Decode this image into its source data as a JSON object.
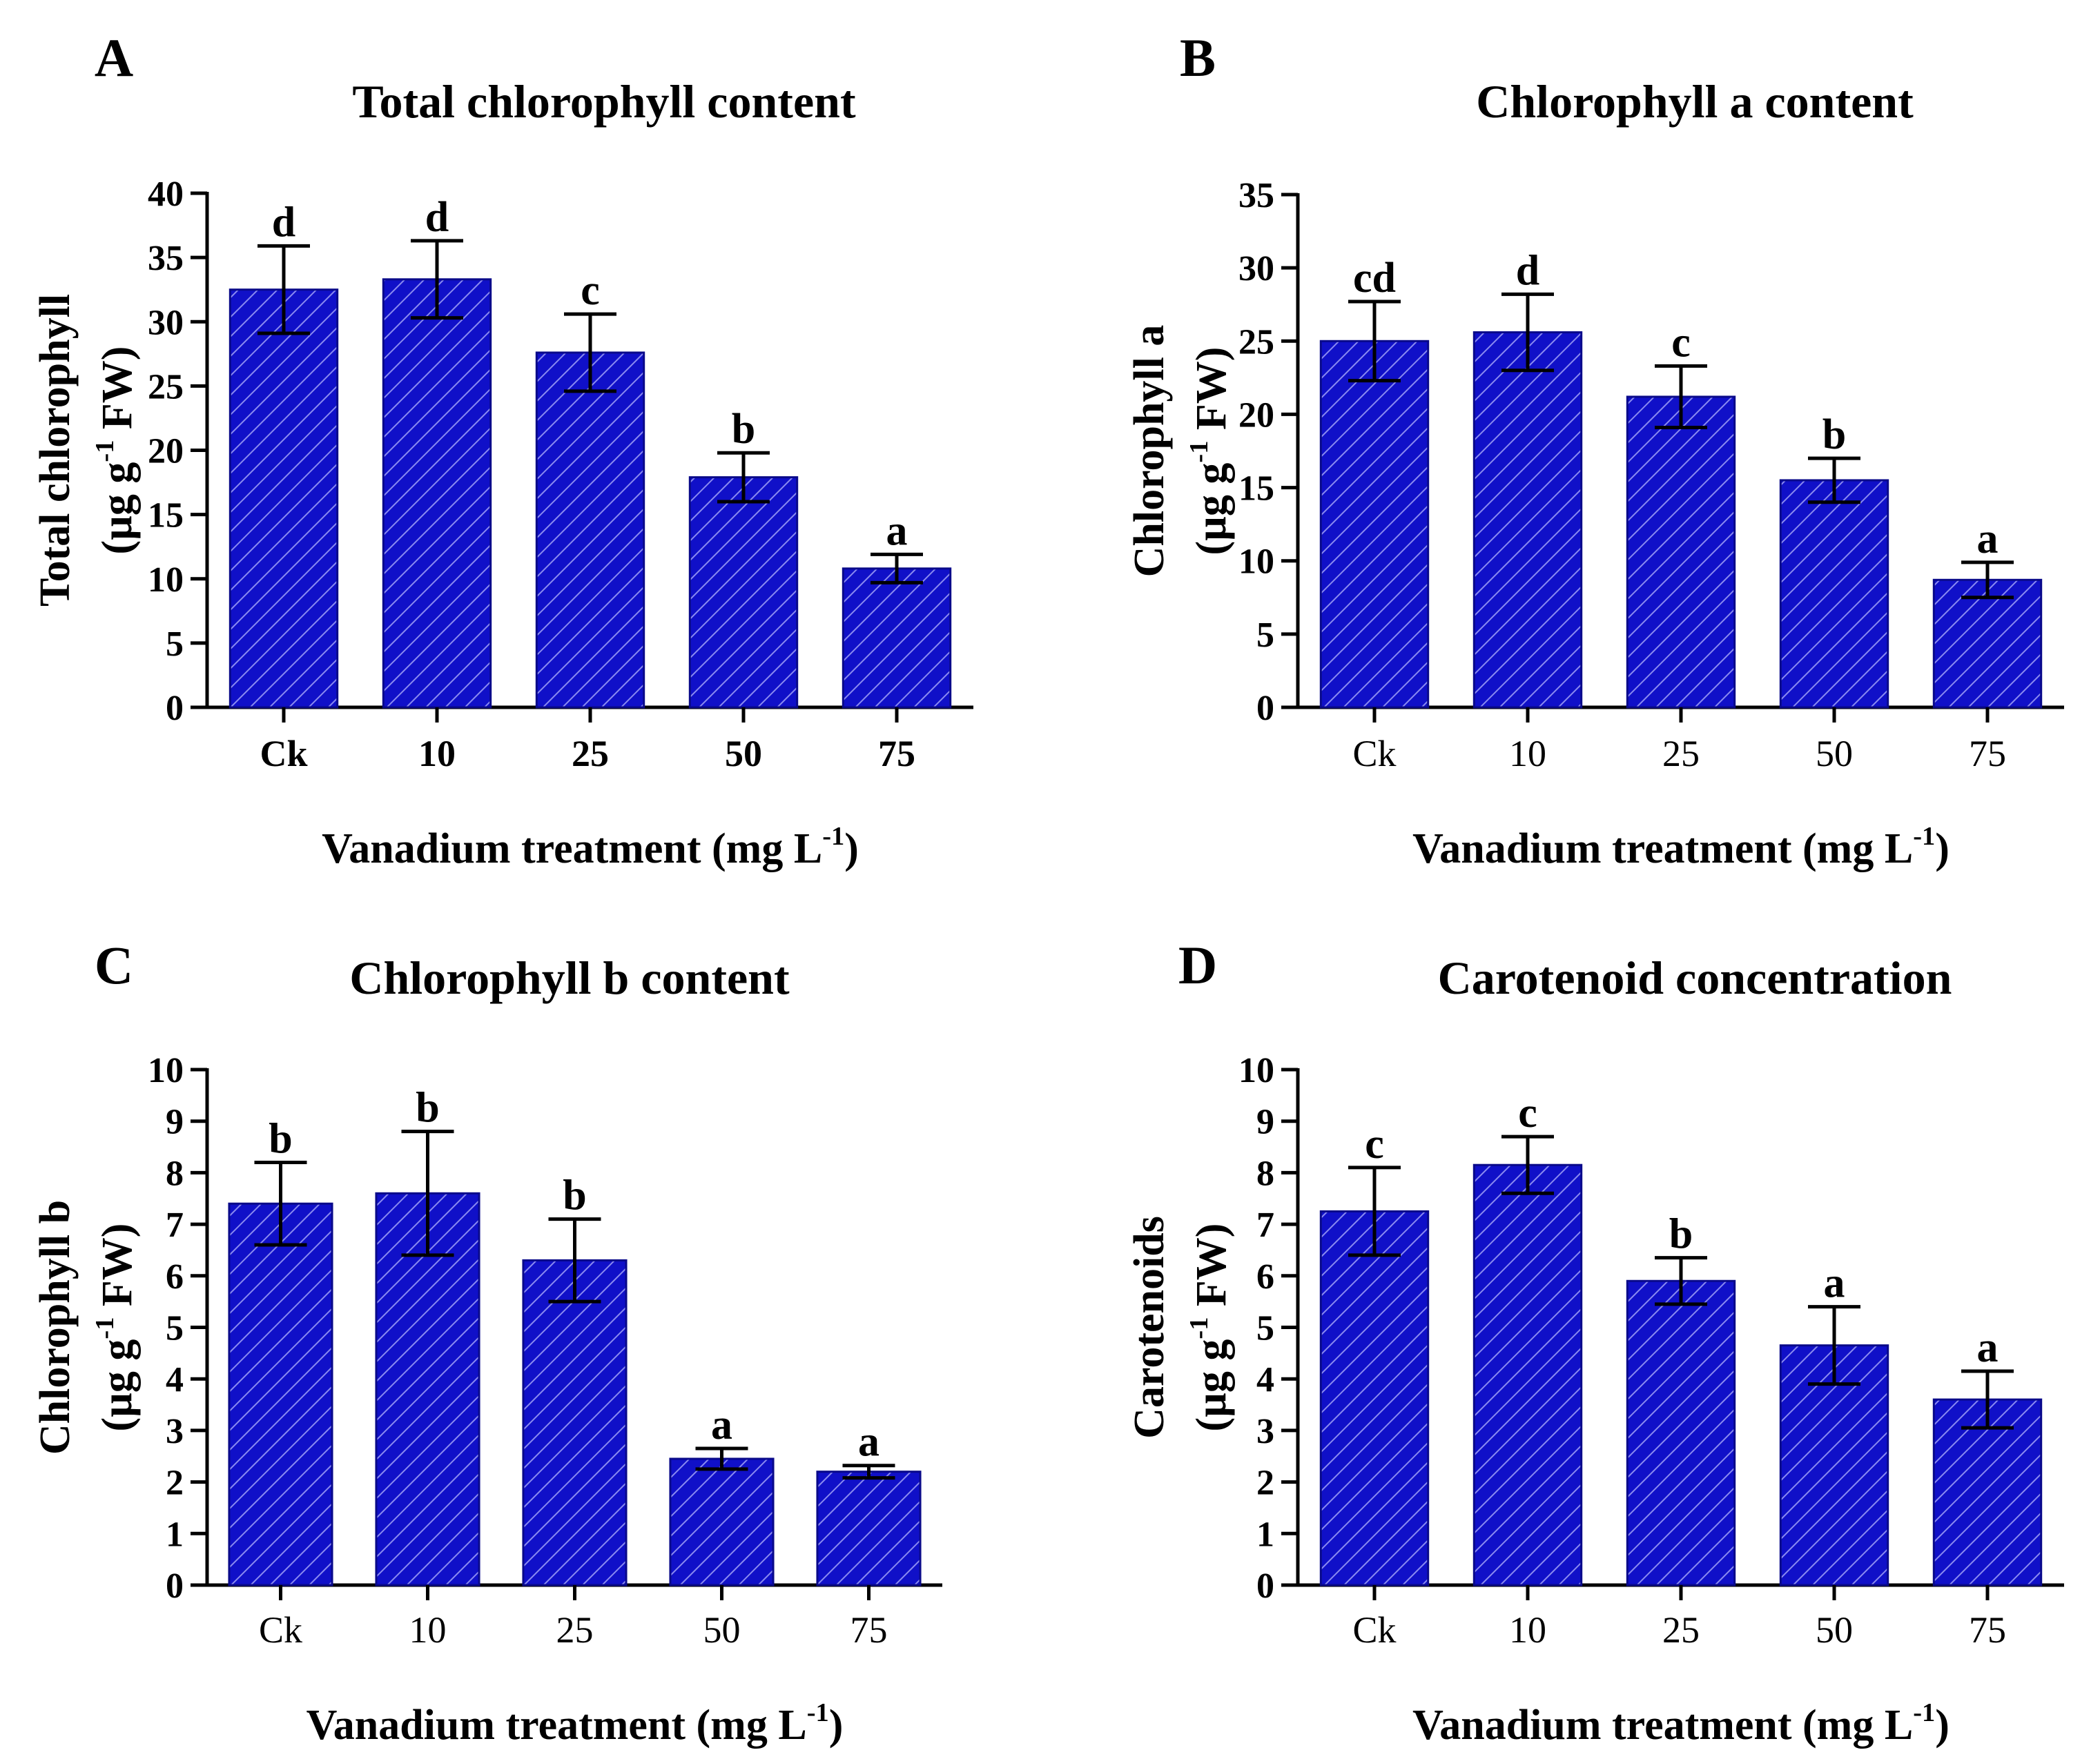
{
  "figure": {
    "bar_color": "#1010c8",
    "bar_stroke": "#0a0a8a",
    "hatch_color": "#8a8af0",
    "axis_color": "#000000"
  },
  "chart_data": [
    {
      "type": "bar",
      "panel_label": "A",
      "title": "Total chlorophyll content",
      "ylabel_line1": "Total chlorophyll",
      "ylabel_line2": {
        "pre": "(µg g",
        "sup": "-1",
        "post": " FW)"
      },
      "xlabel": {
        "pre": "Vanadium treatment (mg L",
        "sup": "-1",
        "post": ")"
      },
      "categories": [
        "Ck",
        "10",
        "25",
        "50",
        "75"
      ],
      "tick_bold": true,
      "values": [
        32.5,
        33.3,
        27.6,
        17.9,
        10.8
      ],
      "errors": [
        3.4,
        3.0,
        3.0,
        1.9,
        1.1
      ],
      "letters": [
        "d",
        "d",
        "c",
        "b",
        "a"
      ],
      "ylim": [
        0,
        40
      ],
      "yticks": [
        0,
        5,
        10,
        15,
        20,
        25,
        30,
        35,
        40
      ]
    },
    {
      "type": "bar",
      "panel_label": "B",
      "title": "Chlorophyll a content",
      "ylabel_line1": "Chlorophyll a",
      "ylabel_line2": {
        "pre": "(µg g",
        "sup": "-1",
        "post": " FW)"
      },
      "xlabel": {
        "pre": "Vanadium treatment (mg L",
        "sup": "-1",
        "post": ")"
      },
      "categories": [
        "Ck",
        "10",
        "25",
        "50",
        "75"
      ],
      "tick_bold": false,
      "values": [
        25.0,
        25.6,
        21.2,
        15.5,
        8.7
      ],
      "errors": [
        2.7,
        2.6,
        2.1,
        1.5,
        1.2
      ],
      "letters": [
        "cd",
        "d",
        "c",
        "b",
        "a"
      ],
      "ylim": [
        0,
        35
      ],
      "yticks": [
        0,
        5,
        10,
        15,
        20,
        25,
        30,
        35
      ]
    },
    {
      "type": "bar",
      "panel_label": "C",
      "title": "Chlorophyll b content",
      "ylabel_line1": "Chlorophyll b",
      "ylabel_line2": {
        "pre": "(µg g",
        "sup": "-1",
        "post": " FW)"
      },
      "xlabel": {
        "pre": "Vanadium treatment (mg L",
        "sup": "-1",
        "post": ")"
      },
      "categories": [
        "Ck",
        "10",
        "25",
        "50",
        "75"
      ],
      "tick_bold": false,
      "values": [
        7.4,
        7.6,
        6.3,
        2.45,
        2.2
      ],
      "errors": [
        0.8,
        1.2,
        0.8,
        0.2,
        0.12
      ],
      "letters": [
        "b",
        "b",
        "b",
        "a",
        "a"
      ],
      "ylim": [
        0,
        10
      ],
      "yticks": [
        0,
        1,
        2,
        3,
        4,
        5,
        6,
        7,
        8,
        9,
        10
      ]
    },
    {
      "type": "bar",
      "panel_label": "D",
      "title": "Carotenoid concentration",
      "ylabel_line1": "Carotenoids",
      "ylabel_line2": {
        "pre": "(µg g",
        "sup": "-1",
        "post": " FW)"
      },
      "xlabel": {
        "pre": "Vanadium treatment (mg L",
        "sup": "-1",
        "post": ")"
      },
      "categories": [
        "Ck",
        "10",
        "25",
        "50",
        "75"
      ],
      "tick_bold": false,
      "values": [
        7.25,
        8.15,
        5.9,
        4.65,
        3.6
      ],
      "errors": [
        0.85,
        0.55,
        0.45,
        0.75,
        0.55
      ],
      "letters": [
        "c",
        "c",
        "b",
        "a",
        "a"
      ],
      "ylim": [
        0,
        10
      ],
      "yticks": [
        0,
        1,
        2,
        3,
        4,
        5,
        6,
        7,
        8,
        9,
        10
      ]
    }
  ]
}
